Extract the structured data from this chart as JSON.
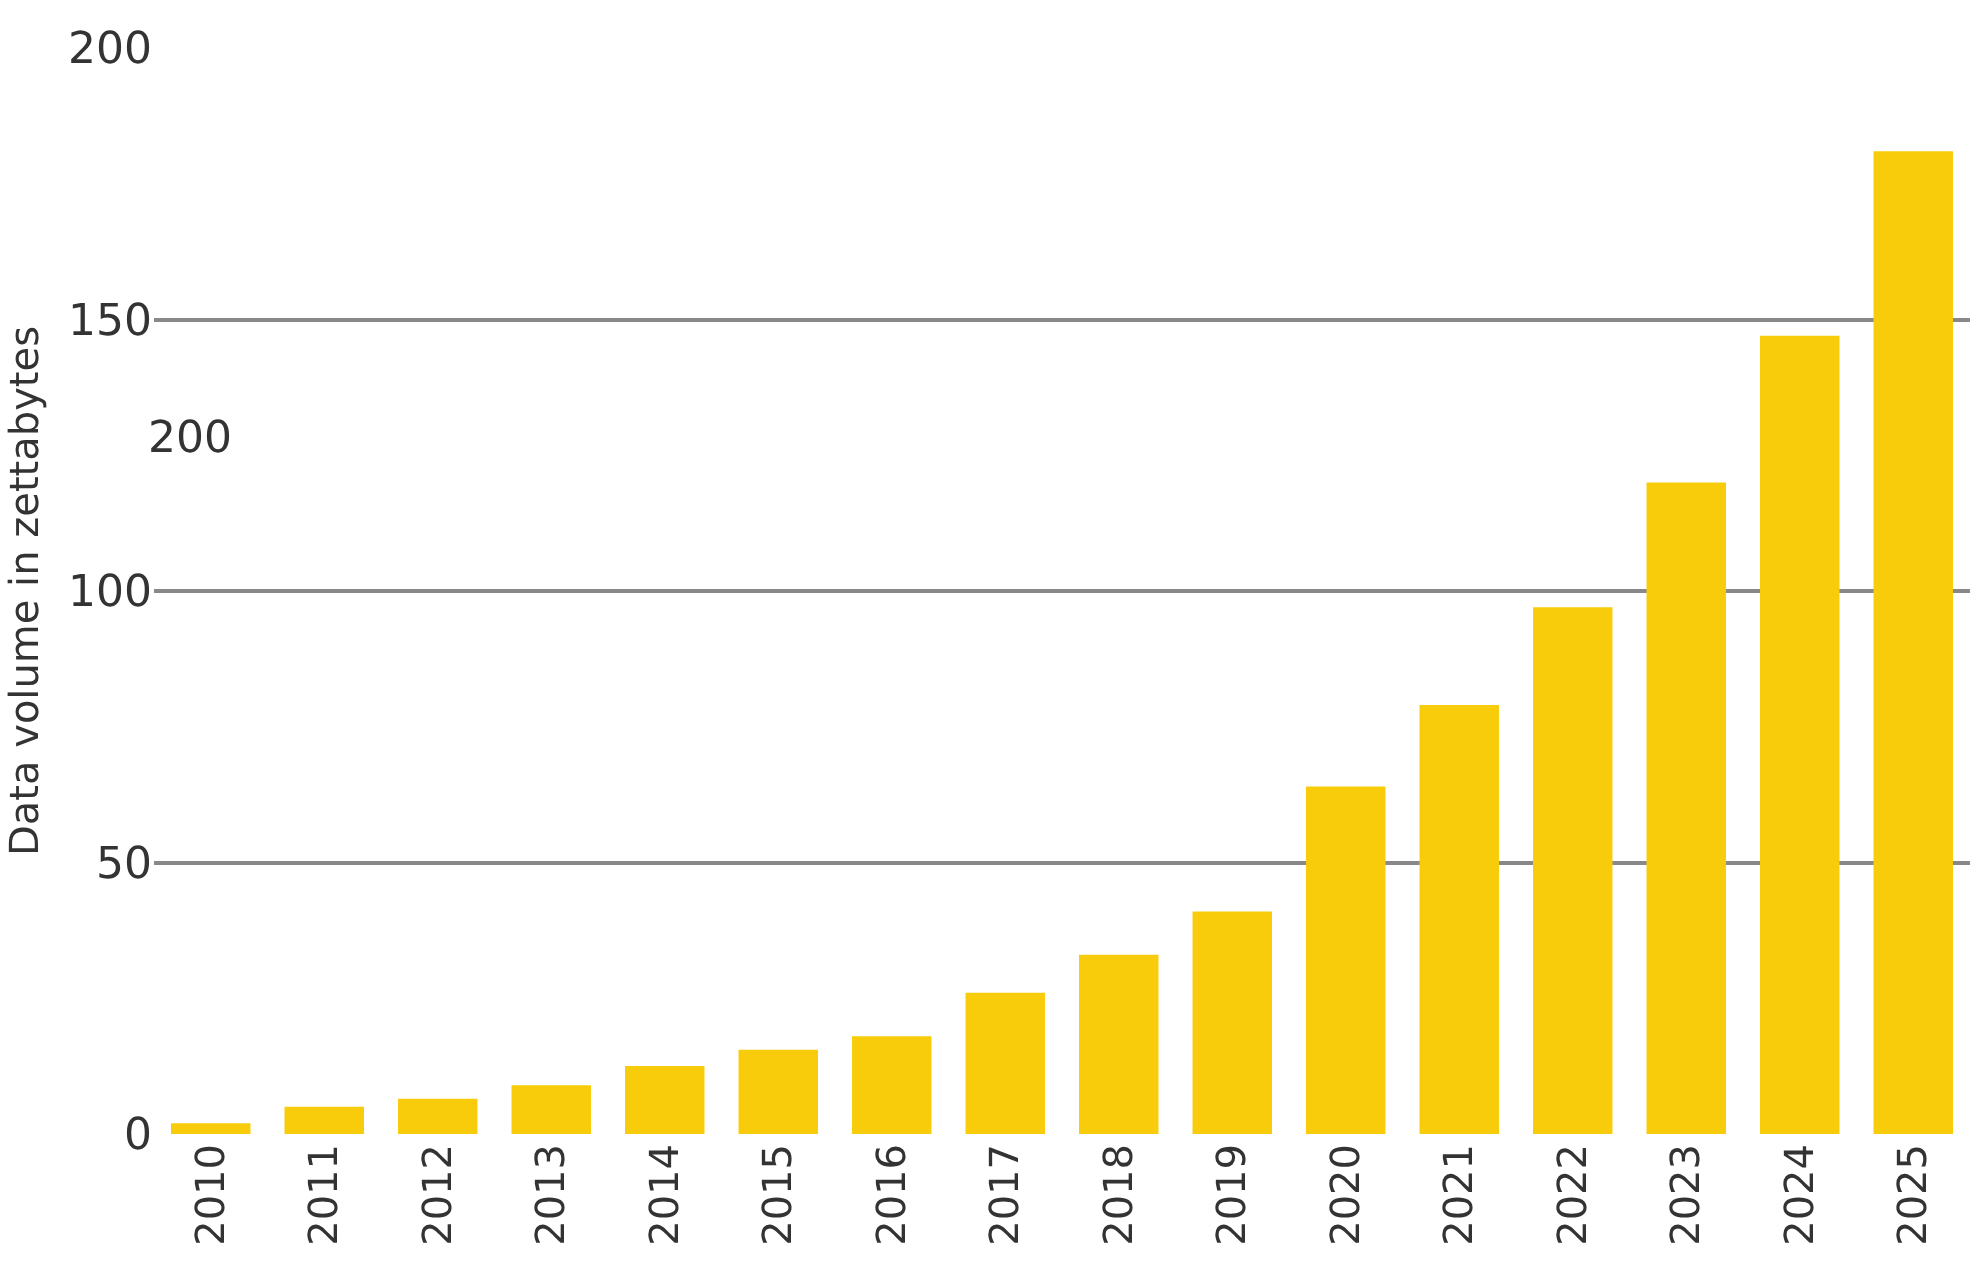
{
  "chart_data": {
    "type": "bar",
    "ylabel": "Data volume in zettabytes",
    "categories": [
      "2010",
      "2011",
      "2012",
      "2013",
      "2014",
      "2015",
      "2016",
      "2017",
      "2018",
      "2019",
      "2020",
      "2021",
      "2022",
      "2023",
      "2024",
      "2025"
    ],
    "values": [
      2,
      5,
      6.5,
      9,
      12.5,
      15.5,
      18,
      26,
      33,
      41,
      64,
      79,
      97,
      120,
      147,
      181
    ],
    "color": "#f8cc0a",
    "ylim": [
      0,
      200
    ],
    "yticks": [
      0,
      50,
      100,
      150,
      200
    ],
    "grid": "y",
    "legend": false,
    "annotations": [
      "200"
    ]
  }
}
